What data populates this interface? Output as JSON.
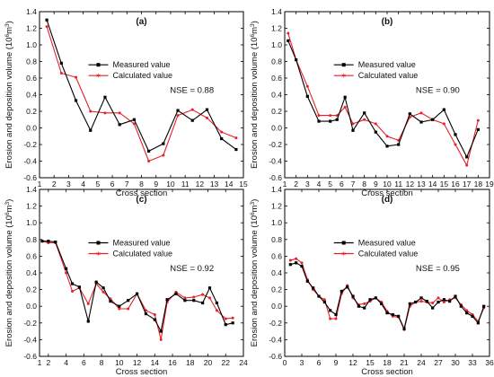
{
  "figure": {
    "shared_ylabel_parts": [
      "Erosion and deposition volume (10",
      "6",
      "m",
      "3",
      ")"
    ],
    "colors": {
      "measured": "#000000",
      "calculated": "#e8202a",
      "axis": "#000000"
    }
  },
  "chart_data": [
    {
      "type": "line",
      "panel_label": "(b)",
      "xlabel": "Cross section",
      "ylabel": "Erosion and deposition volume (10^6 m^3)",
      "xlim": [
        1,
        19
      ],
      "ylim": [
        -0.6,
        1.4
      ],
      "xticks": [
        1,
        2,
        3,
        4,
        5,
        6,
        7,
        8,
        9,
        10,
        11,
        12,
        13,
        14,
        15,
        16,
        17,
        18,
        19
      ],
      "yticks": [
        -0.6,
        -0.4,
        -0.2,
        0.0,
        0.2,
        0.4,
        0.6,
        0.8,
        1.0,
        1.2,
        1.4
      ],
      "annotation": "NSE = 0.90",
      "legend_position": "upper-right",
      "series": [
        {
          "name": "Measured value",
          "x": [
            1.3,
            2,
            3,
            4,
            5,
            5.6,
            6.3,
            7,
            8,
            9,
            10,
            11,
            12,
            13,
            14,
            15,
            16,
            17,
            18
          ],
          "values": [
            1.05,
            0.82,
            0.38,
            0.08,
            0.08,
            0.1,
            0.37,
            -0.03,
            0.18,
            -0.05,
            -0.22,
            -0.2,
            0.17,
            0.07,
            0.1,
            0.22,
            -0.08,
            -0.35,
            -0.02
          ]
        },
        {
          "name": "Calculated value",
          "x": [
            1.3,
            2,
            3,
            4,
            5,
            5.6,
            6.3,
            7,
            8,
            9,
            10,
            11,
            12,
            13,
            14,
            15,
            16,
            17,
            18
          ],
          "values": [
            1.14,
            0.82,
            0.5,
            0.15,
            0.15,
            0.15,
            0.25,
            0.05,
            0.1,
            0.05,
            -0.1,
            -0.15,
            0.13,
            0.18,
            0.1,
            0.05,
            -0.2,
            -0.45,
            0.09
          ]
        }
      ]
    },
    {
      "type": "line",
      "panel_label": "(a)",
      "xlabel": "Cross section",
      "ylabel": "Erosion and deposition volume (10^6 m^3)",
      "xlim": [
        1,
        15
      ],
      "ylim": [
        -0.6,
        1.4
      ],
      "xticks": [
        1,
        2,
        3,
        4,
        5,
        6,
        7,
        8,
        9,
        10,
        11,
        12,
        13,
        14,
        15
      ],
      "yticks": [
        -0.6,
        -0.4,
        -0.2,
        0.0,
        0.2,
        0.4,
        0.6,
        0.8,
        1.0,
        1.2,
        1.4
      ],
      "annotation": "NSE = 0.88",
      "legend_position": "upper-right",
      "series": [
        {
          "name": "Measured value",
          "x": [
            1.5,
            2.5,
            3.5,
            4.5,
            5.5,
            6.5,
            7.5,
            8.5,
            9.5,
            10.5,
            11.5,
            12.5,
            13.5,
            14.5
          ],
          "values": [
            1.3,
            0.78,
            0.33,
            -0.03,
            0.37,
            0.04,
            0.1,
            -0.28,
            -0.19,
            0.21,
            0.09,
            0.22,
            -0.13,
            -0.26
          ]
        },
        {
          "name": "Calculated value",
          "x": [
            1.5,
            2.5,
            3.5,
            4.5,
            5.5,
            6.5,
            7.5,
            8.5,
            9.5,
            10.5,
            11.5,
            12.5,
            13.5,
            14.5
          ],
          "values": [
            1.22,
            0.66,
            0.61,
            0.2,
            0.18,
            0.18,
            0.05,
            -0.4,
            -0.33,
            0.15,
            0.22,
            0.12,
            -0.05,
            -0.12
          ]
        }
      ]
    },
    {
      "type": "line",
      "panel_label": "(c)",
      "xlabel": "Cross section",
      "ylabel": "Erosion and deposition volume (10^6 m^3)",
      "xlim": [
        1,
        24
      ],
      "ylim": [
        -0.6,
        1.4
      ],
      "xticks": [
        1,
        2,
        4,
        6,
        8,
        10,
        12,
        14,
        16,
        18,
        20,
        22,
        24
      ],
      "yticks": [
        -0.6,
        -0.4,
        -0.2,
        0.0,
        0.2,
        0.4,
        0.6,
        0.8,
        1.0,
        1.2,
        1.4
      ],
      "annotation": "NSE = 0.92",
      "legend_position": "upper-right",
      "series": [
        {
          "name": "Measured value",
          "x": [
            1.3,
            2,
            2.8,
            4,
            4.7,
            5.5,
            6.5,
            7.4,
            8.2,
            9,
            10,
            11,
            12,
            13,
            14,
            14.7,
            15.4,
            16.4,
            17.4,
            18.4,
            19.4,
            20.2,
            21,
            22,
            22.8
          ],
          "values": [
            0.78,
            0.78,
            0.77,
            0.45,
            0.27,
            0.23,
            -0.18,
            0.29,
            0.22,
            0.06,
            0.0,
            0.07,
            0.15,
            -0.09,
            -0.16,
            -0.3,
            0.08,
            0.15,
            0.07,
            0.07,
            0.04,
            0.22,
            0.04,
            -0.22,
            -0.2
          ]
        },
        {
          "name": "Calculated value",
          "x": [
            1.3,
            2,
            2.8,
            4,
            4.7,
            5.5,
            6.5,
            7.4,
            8.2,
            9,
            10,
            11,
            12,
            13,
            14,
            14.7,
            15.4,
            16.4,
            17.4,
            18.4,
            19.4,
            20.2,
            21,
            22,
            22.8
          ],
          "values": [
            0.78,
            0.76,
            0.76,
            0.4,
            0.18,
            0.22,
            0.03,
            0.27,
            0.17,
            0.09,
            -0.03,
            -0.03,
            0.15,
            -0.05,
            -0.1,
            -0.4,
            0.05,
            0.17,
            0.1,
            0.11,
            0.14,
            0.1,
            -0.05,
            -0.15,
            -0.14
          ]
        }
      ]
    },
    {
      "type": "line",
      "panel_label": "(d)",
      "xlabel": "Cross section",
      "ylabel": "Erosion and deposition volume (10^6 m^3)",
      "xlim": [
        0,
        36
      ],
      "ylim": [
        -0.6,
        1.4
      ],
      "xticks": [
        0,
        3,
        6,
        9,
        12,
        15,
        18,
        21,
        24,
        27,
        30,
        33,
        36
      ],
      "yticks": [
        -0.6,
        -0.4,
        -0.2,
        0.0,
        0.2,
        0.4,
        0.6,
        0.8,
        1.0,
        1.2,
        1.4
      ],
      "annotation": "NSE = 0.95",
      "legend_position": "upper-right",
      "series": [
        {
          "name": "Measured value",
          "x": [
            1,
            2,
            3,
            4,
            5,
            6,
            7,
            8,
            9,
            10,
            11,
            12,
            13,
            14,
            15,
            16,
            17,
            18,
            19,
            20,
            21,
            22,
            23,
            24,
            25,
            26,
            27,
            28,
            29,
            30,
            31,
            32,
            33,
            34,
            35
          ],
          "values": [
            0.5,
            0.52,
            0.48,
            0.3,
            0.22,
            0.12,
            0.05,
            -0.05,
            -0.1,
            0.18,
            0.23,
            0.12,
            0.0,
            -0.02,
            0.08,
            0.1,
            0.03,
            -0.08,
            -0.1,
            -0.12,
            -0.27,
            0.03,
            0.05,
            0.1,
            0.06,
            -0.02,
            0.05,
            0.08,
            0.06,
            0.12,
            0.0,
            -0.08,
            -0.12,
            -0.2,
            0.0
          ]
        },
        {
          "name": "Calculated value",
          "x": [
            1,
            2,
            3,
            4,
            5,
            6,
            7,
            8,
            9,
            10,
            11,
            12,
            13,
            14,
            15,
            16,
            17,
            18,
            19,
            20,
            21,
            22,
            23,
            24,
            25,
            26,
            27,
            28,
            29,
            30,
            31,
            32,
            33,
            34,
            35
          ],
          "values": [
            0.55,
            0.57,
            0.52,
            0.32,
            0.2,
            0.12,
            0.08,
            -0.15,
            -0.15,
            0.15,
            0.25,
            0.1,
            0.02,
            0.03,
            0.06,
            0.1,
            0.05,
            -0.06,
            -0.12,
            -0.13,
            -0.28,
            0.0,
            0.05,
            0.06,
            0.05,
            0.04,
            0.1,
            0.05,
            0.08,
            0.1,
            0.02,
            -0.05,
            -0.1,
            -0.18,
            -0.02
          ]
        }
      ]
    }
  ]
}
